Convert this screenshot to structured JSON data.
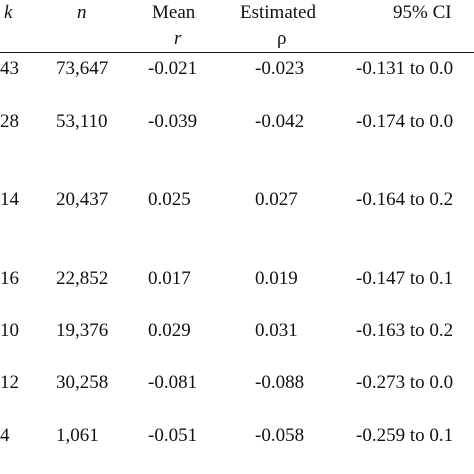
{
  "table": {
    "headers": {
      "k": "k",
      "n": "n",
      "mean_line1": "Mean",
      "mean_line2": "r",
      "est_line1": "Estimated",
      "est_line2": "ρ",
      "ci": "95% CI"
    },
    "rows": [
      {
        "k": "43",
        "n": "73,647",
        "mean_r": "-0.021",
        "est_rho": "-0.023",
        "ci": "-0.131 to 0.0"
      },
      {
        "k": "28",
        "n": "53,110",
        "mean_r": "-0.039",
        "est_rho": "-0.042",
        "ci": "-0.174 to 0.0"
      },
      {
        "k": "14",
        "n": "20,437",
        "mean_r": "0.025",
        "est_rho": "0.027",
        "ci": "-0.164 to 0.2"
      },
      {
        "k": "16",
        "n": "22,852",
        "mean_r": "0.017",
        "est_rho": "0.019",
        "ci": "-0.147 to 0.1"
      },
      {
        "k": "10",
        "n": "19,376",
        "mean_r": "0.029",
        "est_rho": "0.031",
        "ci": "-0.163 to 0.2"
      },
      {
        "k": "12",
        "n": "30,258",
        "mean_r": "-0.081",
        "est_rho": "-0.088",
        "ci": "-0.273 to 0.0"
      },
      {
        "k": "4",
        "n": "1,061",
        "mean_r": "-0.051",
        "est_rho": "-0.058",
        "ci": "-0.259 to 0.1"
      }
    ]
  }
}
